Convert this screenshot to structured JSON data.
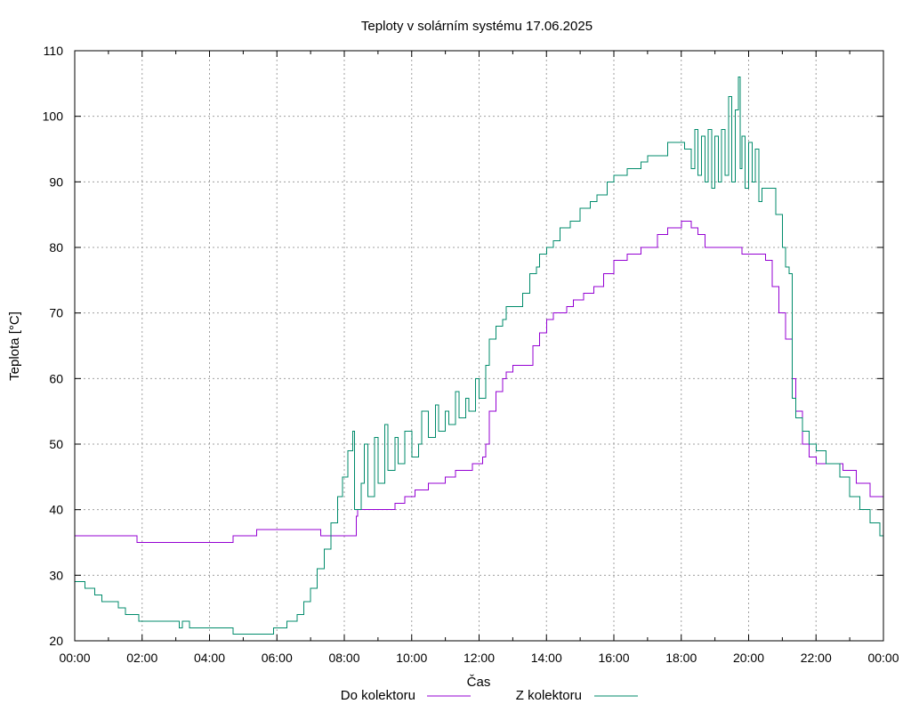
{
  "chart_data": {
    "type": "line",
    "title": "Teploty v solárním systému 17.06.2025",
    "xlabel": "Čas",
    "ylabel": "Teplota [°C]",
    "xlim": [
      0,
      24
    ],
    "ylim": [
      20,
      110
    ],
    "x_ticks": [
      0,
      2,
      4,
      6,
      8,
      10,
      12,
      14,
      16,
      18,
      20,
      22,
      24
    ],
    "x_tick_labels": [
      "00:00",
      "02:00",
      "04:00",
      "06:00",
      "08:00",
      "10:00",
      "12:00",
      "14:00",
      "16:00",
      "18:00",
      "20:00",
      "22:00",
      "00:00"
    ],
    "y_ticks": [
      20,
      30,
      40,
      50,
      60,
      70,
      80,
      90,
      100,
      110
    ],
    "grid": true,
    "legend_position": "bottom",
    "series": [
      {
        "name": "Do kolektoru",
        "color": "#9400d3",
        "points": [
          [
            0.0,
            36
          ],
          [
            1.85,
            36
          ],
          [
            1.85,
            35
          ],
          [
            4.7,
            35
          ],
          [
            4.7,
            36
          ],
          [
            5.4,
            36
          ],
          [
            5.4,
            37
          ],
          [
            7.2,
            37
          ],
          [
            7.3,
            36
          ],
          [
            8.3,
            36
          ],
          [
            8.35,
            39
          ],
          [
            8.4,
            40
          ],
          [
            9.2,
            40
          ],
          [
            9.5,
            41
          ],
          [
            9.8,
            42
          ],
          [
            10.1,
            43
          ],
          [
            10.5,
            44
          ],
          [
            11.0,
            45
          ],
          [
            11.3,
            46
          ],
          [
            11.8,
            47
          ],
          [
            12.1,
            48
          ],
          [
            12.2,
            50
          ],
          [
            12.3,
            55
          ],
          [
            12.5,
            58
          ],
          [
            12.7,
            60
          ],
          [
            12.8,
            61
          ],
          [
            13.0,
            62
          ],
          [
            13.4,
            62
          ],
          [
            13.6,
            65
          ],
          [
            13.8,
            67
          ],
          [
            14.0,
            69
          ],
          [
            14.2,
            70
          ],
          [
            14.6,
            71
          ],
          [
            14.8,
            72
          ],
          [
            15.1,
            73
          ],
          [
            15.4,
            74
          ],
          [
            15.7,
            76
          ],
          [
            16.0,
            78
          ],
          [
            16.4,
            79
          ],
          [
            16.8,
            80
          ],
          [
            17.3,
            82
          ],
          [
            17.6,
            83
          ],
          [
            18.0,
            84
          ],
          [
            18.2,
            84
          ],
          [
            18.3,
            83
          ],
          [
            18.5,
            82
          ],
          [
            18.7,
            80
          ],
          [
            19.0,
            80
          ],
          [
            19.5,
            80
          ],
          [
            19.8,
            79
          ],
          [
            20.2,
            79
          ],
          [
            20.5,
            78
          ],
          [
            20.7,
            74
          ],
          [
            20.9,
            70
          ],
          [
            21.1,
            66
          ],
          [
            21.3,
            60
          ],
          [
            21.4,
            55
          ],
          [
            21.6,
            50
          ],
          [
            21.8,
            48
          ],
          [
            22.0,
            47
          ],
          [
            22.5,
            47
          ],
          [
            22.8,
            46
          ],
          [
            23.2,
            44
          ],
          [
            23.6,
            42
          ],
          [
            24.0,
            41
          ]
        ]
      },
      {
        "name": "Z kolektoru",
        "color": "#008b6b",
        "points": [
          [
            0.0,
            29
          ],
          [
            0.3,
            28
          ],
          [
            0.6,
            27
          ],
          [
            0.8,
            26
          ],
          [
            1.2,
            26
          ],
          [
            1.3,
            25
          ],
          [
            1.5,
            24
          ],
          [
            1.9,
            23
          ],
          [
            2.9,
            23
          ],
          [
            3.1,
            22
          ],
          [
            3.2,
            23
          ],
          [
            3.4,
            22
          ],
          [
            4.6,
            22
          ],
          [
            4.7,
            21
          ],
          [
            5.8,
            21
          ],
          [
            5.9,
            22
          ],
          [
            6.2,
            22
          ],
          [
            6.3,
            23
          ],
          [
            6.6,
            24
          ],
          [
            6.8,
            26
          ],
          [
            7.0,
            28
          ],
          [
            7.2,
            31
          ],
          [
            7.4,
            34
          ],
          [
            7.6,
            38
          ],
          [
            7.8,
            42
          ],
          [
            7.95,
            45
          ],
          [
            8.1,
            49
          ],
          [
            8.25,
            52
          ],
          [
            8.3,
            40
          ],
          [
            8.5,
            44
          ],
          [
            8.6,
            50
          ],
          [
            8.7,
            42
          ],
          [
            8.9,
            51
          ],
          [
            9.0,
            44
          ],
          [
            9.2,
            53
          ],
          [
            9.3,
            46
          ],
          [
            9.5,
            51
          ],
          [
            9.6,
            47
          ],
          [
            9.8,
            52
          ],
          [
            10.0,
            48
          ],
          [
            10.2,
            50
          ],
          [
            10.3,
            55
          ],
          [
            10.5,
            51
          ],
          [
            10.7,
            56
          ],
          [
            10.8,
            52
          ],
          [
            11.0,
            55
          ],
          [
            11.1,
            53
          ],
          [
            11.3,
            58
          ],
          [
            11.4,
            54
          ],
          [
            11.6,
            57
          ],
          [
            11.7,
            55
          ],
          [
            11.9,
            60
          ],
          [
            12.0,
            57
          ],
          [
            12.2,
            62
          ],
          [
            12.3,
            66
          ],
          [
            12.5,
            68
          ],
          [
            12.7,
            69
          ],
          [
            12.8,
            71
          ],
          [
            13.0,
            71
          ],
          [
            13.3,
            73
          ],
          [
            13.5,
            76
          ],
          [
            13.7,
            77
          ],
          [
            13.8,
            79
          ],
          [
            14.0,
            80
          ],
          [
            14.2,
            81
          ],
          [
            14.4,
            83
          ],
          [
            14.7,
            84
          ],
          [
            15.0,
            86
          ],
          [
            15.3,
            87
          ],
          [
            15.5,
            88
          ],
          [
            15.8,
            90
          ],
          [
            16.0,
            91
          ],
          [
            16.4,
            92
          ],
          [
            16.8,
            93
          ],
          [
            17.0,
            94
          ],
          [
            17.3,
            94
          ],
          [
            17.6,
            96
          ],
          [
            17.9,
            96
          ],
          [
            18.1,
            95
          ],
          [
            18.3,
            92
          ],
          [
            18.4,
            98
          ],
          [
            18.5,
            91
          ],
          [
            18.6,
            97
          ],
          [
            18.7,
            90
          ],
          [
            18.8,
            98
          ],
          [
            18.9,
            89
          ],
          [
            19.0,
            97
          ],
          [
            19.1,
            90
          ],
          [
            19.2,
            98
          ],
          [
            19.3,
            91
          ],
          [
            19.4,
            103
          ],
          [
            19.5,
            90
          ],
          [
            19.6,
            101
          ],
          [
            19.7,
            106
          ],
          [
            19.75,
            92
          ],
          [
            19.8,
            97
          ],
          [
            19.9,
            89
          ],
          [
            20.0,
            96
          ],
          [
            20.1,
            90
          ],
          [
            20.2,
            95
          ],
          [
            20.3,
            87
          ],
          [
            20.4,
            89
          ],
          [
            20.6,
            89
          ],
          [
            20.8,
            85
          ],
          [
            21.0,
            80
          ],
          [
            21.1,
            77
          ],
          [
            21.2,
            76
          ],
          [
            21.3,
            57
          ],
          [
            21.4,
            54
          ],
          [
            21.6,
            52
          ],
          [
            21.8,
            50
          ],
          [
            22.0,
            49
          ],
          [
            22.3,
            47
          ],
          [
            22.7,
            45
          ],
          [
            23.0,
            42
          ],
          [
            23.3,
            40
          ],
          [
            23.6,
            38
          ],
          [
            23.9,
            36
          ],
          [
            24.0,
            35
          ]
        ]
      }
    ]
  }
}
